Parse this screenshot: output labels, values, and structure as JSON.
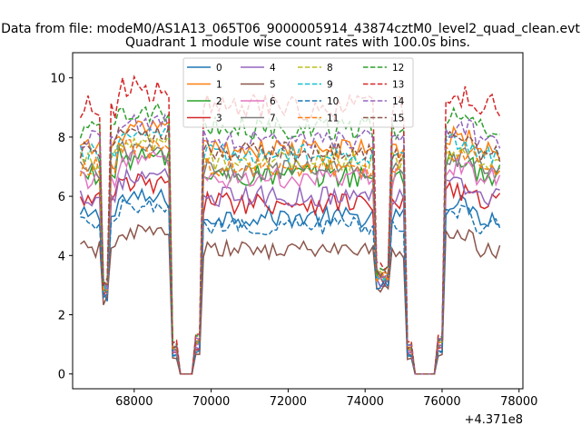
{
  "chart_data": {
    "type": "line",
    "suptitle": "Data from file: modeM0/AS1A13_065T06_9000005914_43874cztM0_level2_quad_clean.evt",
    "title": "Quadrant 1 module wise count rates with 100.0s bins.",
    "xlabel": "",
    "ylabel": "",
    "x_offset_label": "+4.371e8",
    "xlim": [
      66400,
      78100
    ],
    "ylim": [
      -0.5,
      10.85
    ],
    "x_ticks": [
      68000,
      70000,
      72000,
      74000,
      76000,
      78000
    ],
    "x_tick_labels": [
      "68000",
      "70000",
      "72000",
      "74000",
      "76000",
      "78000"
    ],
    "y_ticks": [
      0,
      2,
      4,
      6,
      8,
      10
    ],
    "y_tick_labels": [
      "0",
      "2",
      "4",
      "6",
      "8",
      "10"
    ],
    "time_start": 66600,
    "bin_size": 100,
    "segments": [
      {
        "start": 66600,
        "end": 67200
      },
      {
        "start": 67200,
        "end": 67400,
        "dip": 3.2
      },
      {
        "start": 67400,
        "end": 69000
      },
      {
        "start": 69000,
        "end": 69200,
        "fall": true
      },
      {
        "start": 69200,
        "end": 69600,
        "zero": true
      },
      {
        "start": 69600,
        "end": 69800,
        "rise": true
      },
      {
        "start": 69800,
        "end": 74300
      },
      {
        "start": 74300,
        "end": 74700,
        "dip": 3.6
      },
      {
        "start": 74700,
        "end": 75100
      },
      {
        "start": 75100,
        "end": 75300,
        "fall": true
      },
      {
        "start": 75300,
        "end": 75900,
        "zero": true
      },
      {
        "start": 75900,
        "end": 76100,
        "rise": true
      },
      {
        "start": 76100,
        "end": 77500
      }
    ],
    "series": [
      {
        "name": "0",
        "color": "#1f77b4",
        "dash": "solid",
        "level": 5.3,
        "noise": 0.35
      },
      {
        "name": "1",
        "color": "#ff7f0e",
        "dash": "solid",
        "level": 7.6,
        "noise": 0.35
      },
      {
        "name": "2",
        "color": "#2ca02c",
        "dash": "solid",
        "level": 6.7,
        "noise": 0.4
      },
      {
        "name": "3",
        "color": "#d62728",
        "dash": "solid",
        "level": 5.8,
        "noise": 0.4
      },
      {
        "name": "4",
        "color": "#9467bd",
        "dash": "solid",
        "level": 6.0,
        "noise": 0.35
      },
      {
        "name": "5",
        "color": "#8c564b",
        "dash": "solid",
        "level": 4.2,
        "noise": 0.3
      },
      {
        "name": "6",
        "color": "#e377c2",
        "dash": "solid",
        "level": 6.6,
        "noise": 0.35
      },
      {
        "name": "7",
        "color": "#7f7f7f",
        "dash": "solid",
        "level": 6.9,
        "noise": 0.35
      },
      {
        "name": "8",
        "color": "#bcbd22",
        "dash": "dashed",
        "level": 7.2,
        "noise": 0.35
      },
      {
        "name": "9",
        "color": "#17becf",
        "dash": "dashed",
        "level": 7.4,
        "noise": 0.35
      },
      {
        "name": "10",
        "color": "#1f77b4",
        "dash": "dashed",
        "level": 5.0,
        "noise": 0.3
      },
      {
        "name": "11",
        "color": "#ff7f0e",
        "dash": "dashed",
        "level": 7.0,
        "noise": 0.35
      },
      {
        "name": "12",
        "color": "#2ca02c",
        "dash": "dashed",
        "level": 8.3,
        "noise": 0.4
      },
      {
        "name": "13",
        "color": "#d62728",
        "dash": "dashed",
        "level": 9.0,
        "noise": 0.45
      },
      {
        "name": "14",
        "color": "#9467bd",
        "dash": "dashed",
        "level": 7.9,
        "noise": 0.35
      },
      {
        "name": "15",
        "color": "#8c564b",
        "dash": "dashed",
        "level": 7.5,
        "noise": 0.35
      }
    ],
    "legend": {
      "location": "top-center",
      "columns": 4
    }
  }
}
